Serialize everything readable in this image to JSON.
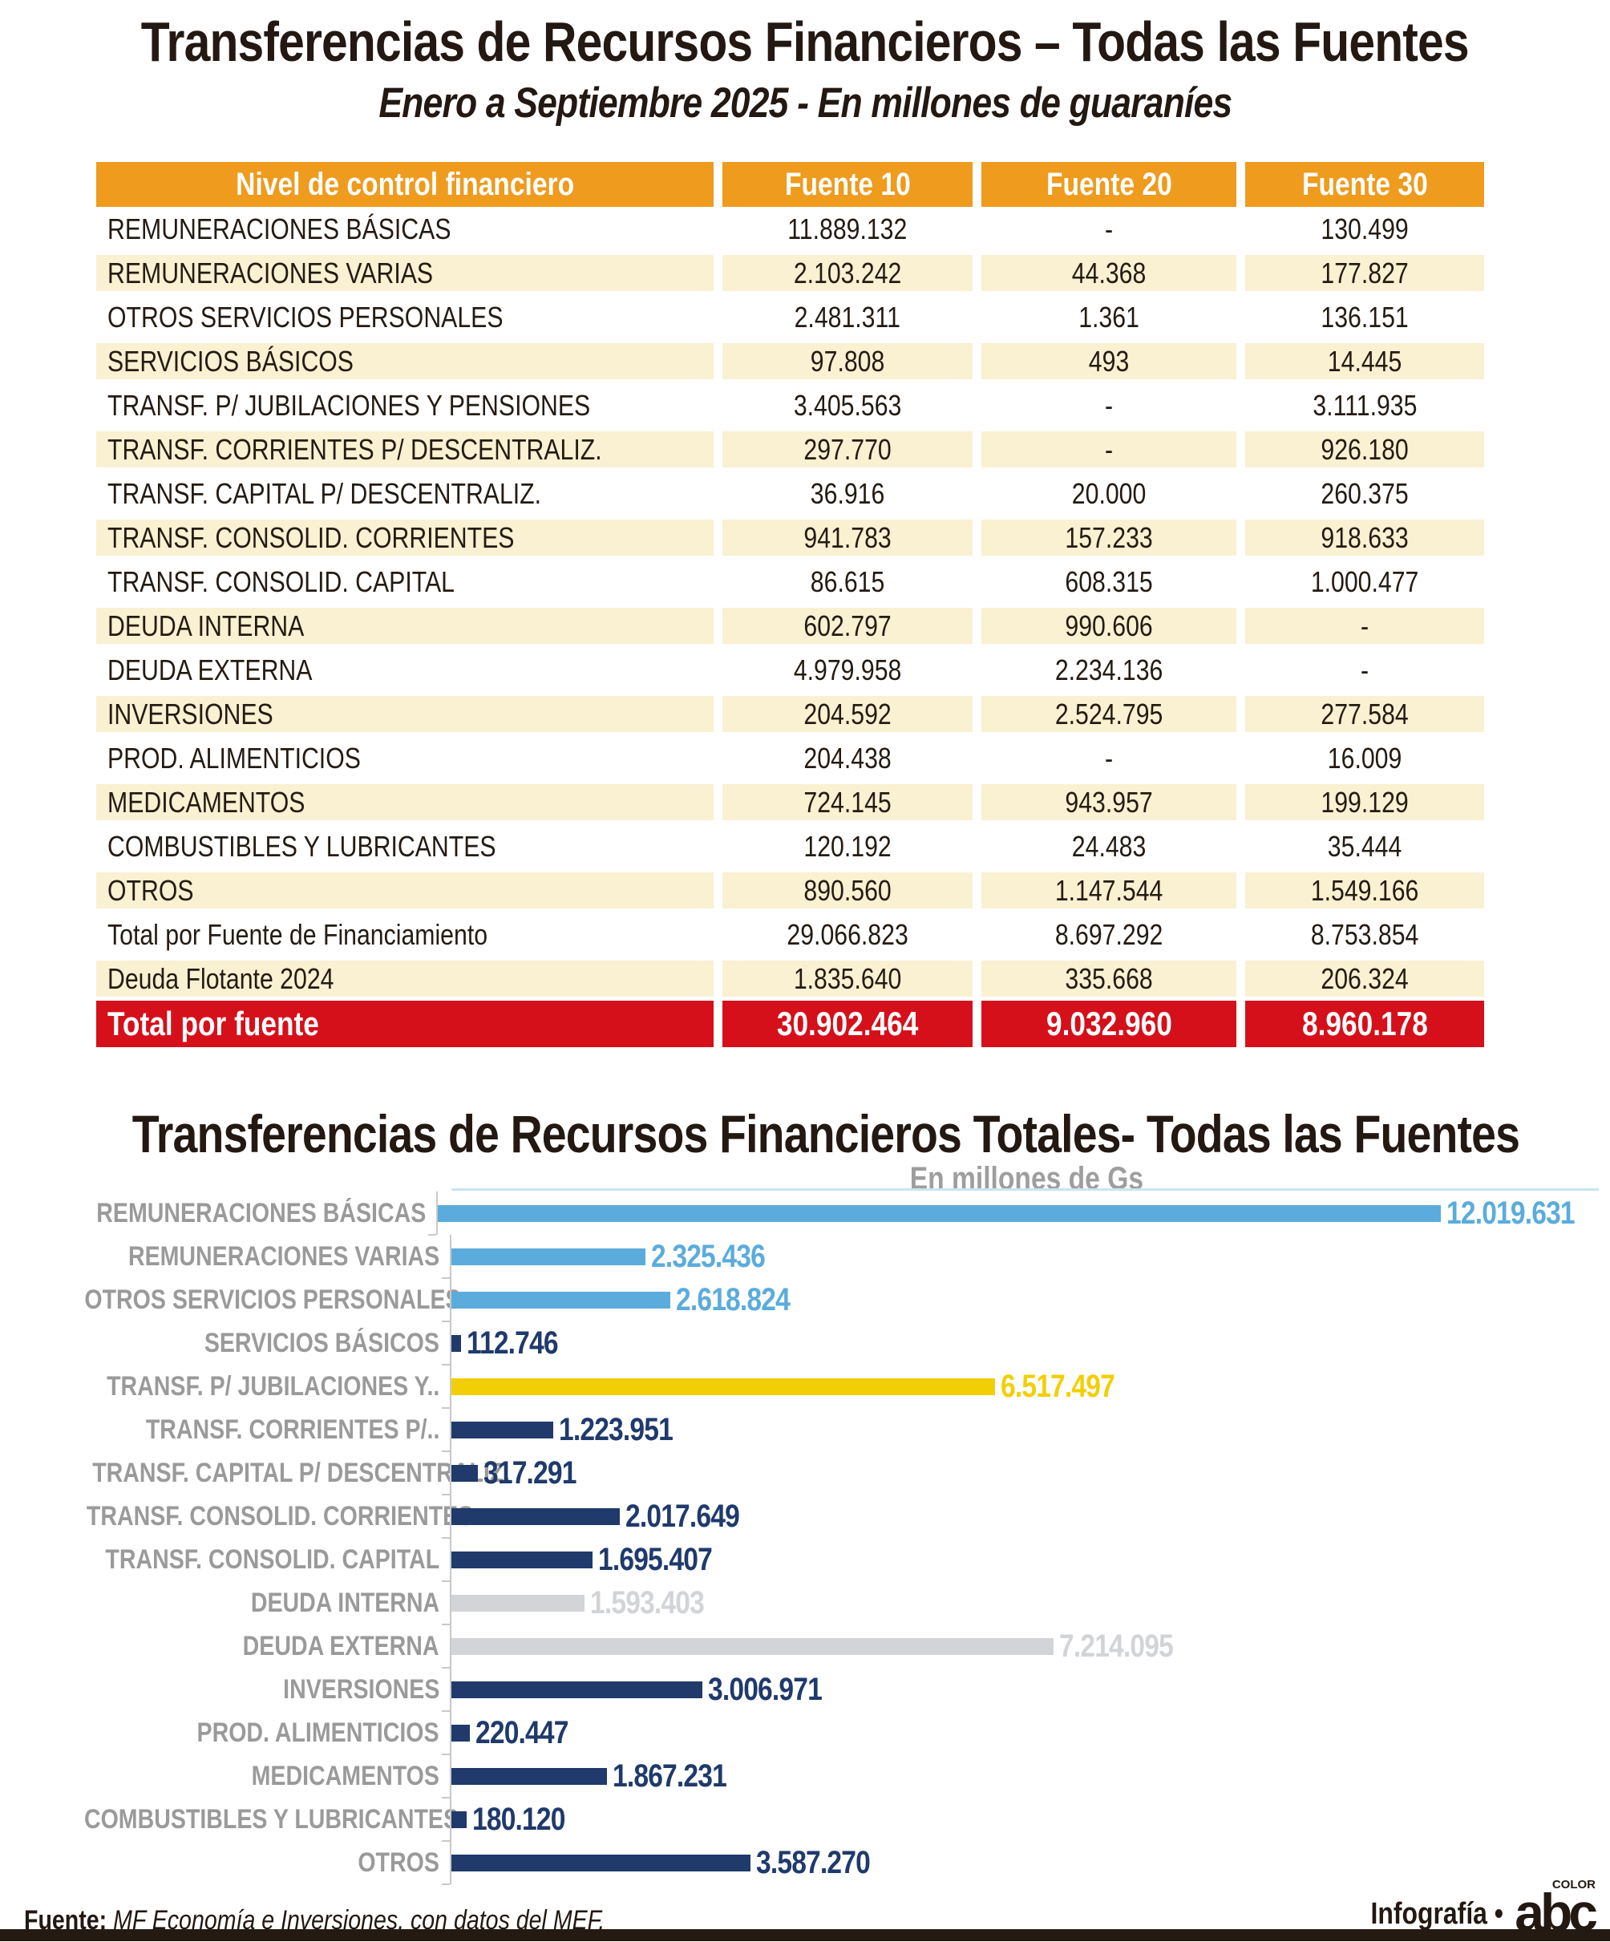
{
  "page": {
    "title": "Transferencias de Recursos Financieros – Todas las Fuentes",
    "subtitle": "Enero a Septiembre 2025 - En millones de guaraníes",
    "footer": {
      "source_label": "Fuente:",
      "source_text": "MF Economía e Inversiones, con datos del MEF.",
      "credit_text": "Infografía •",
      "logo_text": "abc",
      "logo_small": "COLOR"
    }
  },
  "colors": {
    "orange_header": "#EE9B1E",
    "cream_row": "#FAF0D2",
    "red_total": "#D5101B",
    "blue": "#5BACDC",
    "navy": "#1F3A6B",
    "yellow": "#F2CF05",
    "gray_bar": "#D2D4D7",
    "label_gray": "#9A9A9A",
    "dark": "#241A12"
  },
  "table": {
    "headers": [
      "Nivel de control financiero",
      "Fuente 10",
      "Fuente 20",
      "Fuente 30"
    ],
    "rows": [
      {
        "label": "REMUNERACIONES BÁSICAS",
        "f10": "11.889.132",
        "f20": "-",
        "f30": "130.499"
      },
      {
        "label": "REMUNERACIONES VARIAS",
        "f10": "2.103.242",
        "f20": "44.368",
        "f30": "177.827"
      },
      {
        "label": "OTROS SERVICIOS PERSONALES",
        "f10": "2.481.311",
        "f20": "1.361",
        "f30": "136.151"
      },
      {
        "label": "SERVICIOS BÁSICOS",
        "f10": "97.808",
        "f20": "493",
        "f30": "14.445"
      },
      {
        "label": "TRANSF. P/ JUBILACIONES Y PENSIONES",
        "f10": "3.405.563",
        "f20": "-",
        "f30": "3.111.935"
      },
      {
        "label": "TRANSF. CORRIENTES P/ DESCENTRALIZ.",
        "f10": "297.770",
        "f20": "-",
        "f30": "926.180"
      },
      {
        "label": "TRANSF. CAPITAL P/ DESCENTRALIZ.",
        "f10": "36.916",
        "f20": "20.000",
        "f30": "260.375"
      },
      {
        "label": "TRANSF. CONSOLID. CORRIENTES",
        "f10": "941.783",
        "f20": "157.233",
        "f30": "918.633"
      },
      {
        "label": "TRANSF. CONSOLID. CAPITAL",
        "f10": "86.615",
        "f20": "608.315",
        "f30": "1.000.477"
      },
      {
        "label": "DEUDA INTERNA",
        "f10": "602.797",
        "f20": "990.606",
        "f30": "-"
      },
      {
        "label": "DEUDA EXTERNA",
        "f10": "4.979.958",
        "f20": "2.234.136",
        "f30": "-"
      },
      {
        "label": "INVERSIONES",
        "f10": "204.592",
        "f20": "2.524.795",
        "f30": "277.584"
      },
      {
        "label": "PROD. ALIMENTICIOS",
        "f10": "204.438",
        "f20": "-",
        "f30": "16.009"
      },
      {
        "label": "MEDICAMENTOS",
        "f10": "724.145",
        "f20": "943.957",
        "f30": "199.129"
      },
      {
        "label": "COMBUSTIBLES Y LUBRICANTES",
        "f10": "120.192",
        "f20": "24.483",
        "f30": "35.444"
      },
      {
        "label": "OTROS",
        "f10": "890.560",
        "f20": "1.147.544",
        "f30": "1.549.166"
      },
      {
        "label": "Total por Fuente de Financiamiento",
        "f10": "29.066.823",
        "f20": "8.697.292",
        "f30": "8.753.854"
      },
      {
        "label": "Deuda Flotante 2024",
        "f10": "1.835.640",
        "f20": "335.668",
        "f30": "206.324"
      }
    ],
    "total_row": {
      "label": "Total por fuente",
      "f10": "30.902.464",
      "f20": "9.032.960",
      "f30": "8.960.178"
    }
  },
  "chart_data": {
    "type": "bar",
    "orientation": "horizontal",
    "title": "Transferencias de Recursos Financieros Totales- Todas las Fuentes",
    "subtitle": "En millones de Gs",
    "xlim": [
      0,
      12019631
    ],
    "grid": false,
    "categories": [
      "REMUNERACIONES BÁSICAS",
      "REMUNERACIONES VARIAS",
      "OTROS SERVICIOS PERSONALES",
      "SERVICIOS BÁSICOS",
      "TRANSF. P/ JUBILACIONES Y..",
      "TRANSF. CORRIENTES P/..",
      "TRANSF. CAPITAL P/ DESCENTRALIZ.",
      "TRANSF. CONSOLID. CORRIENTES",
      "TRANSF. CONSOLID. CAPITAL",
      "DEUDA INTERNA",
      "DEUDA EXTERNA",
      "INVERSIONES",
      "PROD. ALIMENTICIOS",
      "MEDICAMENTOS",
      "COMBUSTIBLES Y LUBRICANTES",
      "OTROS"
    ],
    "values": [
      12019631,
      2325436,
      2618824,
      112746,
      6517497,
      1223951,
      317291,
      2017649,
      1695407,
      1593403,
      7214095,
      3006971,
      220447,
      1867231,
      180120,
      3587270
    ],
    "display": [
      "12.019.631",
      "2.325.436",
      "2.618.824",
      "112.746",
      "6.517.497",
      "1.223.951",
      "317.291",
      "2.017.649",
      "1.695.407",
      "1.593.403",
      "7.214.095",
      "3.006.971",
      "220.447",
      "1.867.231",
      "180.120",
      "3.587.270"
    ],
    "bar_colors": [
      "blue",
      "blue",
      "blue",
      "navy",
      "yellow",
      "navy",
      "navy",
      "navy",
      "navy",
      "gray_bar",
      "gray_bar",
      "navy",
      "navy",
      "navy",
      "navy",
      "navy"
    ]
  }
}
